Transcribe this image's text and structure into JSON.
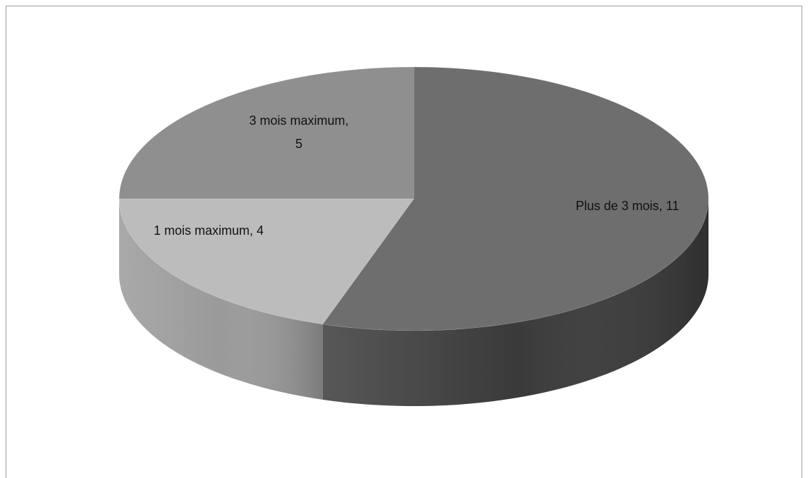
{
  "chart_data": {
    "type": "pie",
    "style": "3d",
    "title": "",
    "slices": [
      {
        "label": "Plus de 3 mois",
        "value": 11,
        "color": "#6e6e6e",
        "side_color": "#3a3a3a",
        "data_label": "Plus de 3 mois, 11"
      },
      {
        "label": "1 mois maximum",
        "value": 4,
        "color": "#bcbcbc",
        "side_color": "#9a9a9a",
        "data_label": "1 mois maximum, 4"
      },
      {
        "label": "3 mois maximum",
        "value": 5,
        "color": "#8f8f8f",
        "side_color": "#777777",
        "data_label_lines": [
          "3 mois maximum,",
          "5"
        ]
      }
    ],
    "legend": "none"
  }
}
